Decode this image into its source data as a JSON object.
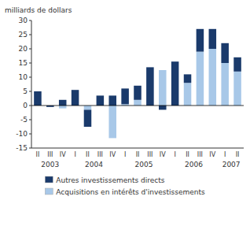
{
  "chart_data": {
    "type": "bar",
    "stacked": true,
    "grid": false,
    "legend": "bottom",
    "ylabel": "milliards de dollars",
    "ylim": [
      -15,
      30
    ],
    "yticks": [
      -15,
      -10,
      -5,
      0,
      5,
      10,
      15,
      20,
      25,
      30
    ],
    "categories": [
      "II",
      "III",
      "IV",
      "I",
      "II",
      "III",
      "IV",
      "I",
      "II",
      "III",
      "IV",
      "I",
      "II",
      "III",
      "IV",
      "I",
      "II"
    ],
    "annotations": [
      "2003",
      "2004",
      "2005",
      "2006",
      "2007"
    ],
    "series": [
      {
        "name": "Autres investissements directs",
        "color": "#1a3a6b",
        "values": [
          5.0,
          -0.5,
          2.0,
          5.5,
          -6.0,
          3.5,
          3.5,
          5.5,
          5.0,
          13.5,
          -1.5,
          15.5,
          3.0,
          8.0,
          7.0,
          7.0,
          5.0
        ]
      },
      {
        "name": "Acquisitions en intérêts d'investissements",
        "color": "#a8c8e8",
        "values": [
          0,
          0,
          -1.0,
          0,
          -1.5,
          0,
          -11.5,
          0.5,
          2.0,
          0,
          12.5,
          0,
          8.0,
          19.0,
          20.0,
          15.0,
          12.0
        ]
      }
    ]
  }
}
